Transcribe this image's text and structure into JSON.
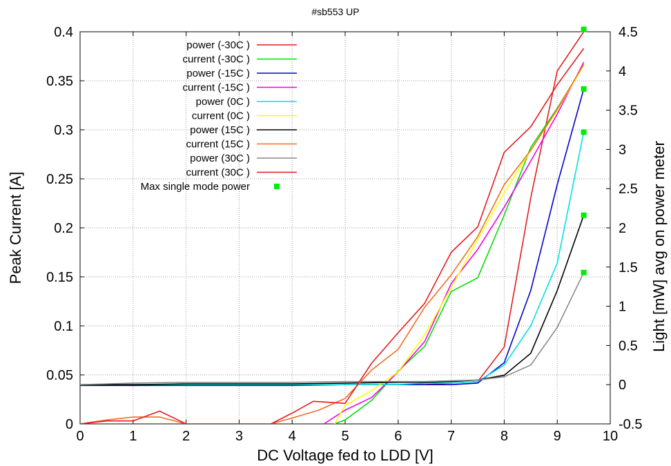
{
  "chart_data": {
    "type": "line",
    "title": "#sb553 UP",
    "xlabel": "DC Voltage fed to LDD [V]",
    "ylabel": "Peak Current [A]",
    "y2label": "Light [mW] avg on power meter",
    "xlim": [
      0,
      10
    ],
    "ylim": [
      0,
      0.4
    ],
    "y2lim": [
      -0.5,
      4.5
    ],
    "xticks": [
      "0",
      "1",
      "2",
      "3",
      "4",
      "5",
      "6",
      "7",
      "8",
      "9",
      "10"
    ],
    "yticks": [
      "0",
      "0.05",
      "0.1",
      "0.15",
      "0.2",
      "0.25",
      "0.3",
      "0.35",
      "0.4"
    ],
    "y2ticks": [
      "-0.5",
      "0",
      "0.5",
      "1",
      "1.5",
      "2",
      "2.5",
      "3",
      "3.5",
      "4",
      "4.5"
    ],
    "grid": true,
    "legend_position": "top-left",
    "series": [
      {
        "name": "power (-30C )",
        "axis": "y2",
        "color": "#e41a1c",
        "x": [
          0,
          0.5,
          1,
          1.5,
          2,
          2.5,
          3,
          3.5,
          4,
          4.5,
          5,
          5.5,
          6,
          6.5,
          7,
          7.5,
          8,
          8.5,
          9,
          9.5
        ],
        "y": [
          -0.005,
          -0.005,
          -0.01,
          -0.005,
          -0.005,
          -0.005,
          -0.005,
          -0.005,
          -0.005,
          0,
          0,
          0,
          0,
          0,
          0.02,
          0.04,
          0.48,
          2.38,
          4.0,
          4.5
        ]
      },
      {
        "name": "current (-30C )",
        "axis": "y",
        "color": "#00dd00",
        "x": [
          4.8,
          5,
          5.5,
          6,
          6.5,
          7,
          7.5,
          8,
          8.5,
          9,
          9.5
        ],
        "y": [
          0,
          0.004,
          0.024,
          0.054,
          0.079,
          0.135,
          0.149,
          0.213,
          0.282,
          0.322,
          0.366
        ]
      },
      {
        "name": "power (-15C )",
        "axis": "y2",
        "color": "#0000cc",
        "x": [
          0,
          1,
          2,
          3,
          4,
          5,
          6,
          6.5,
          7,
          7.5,
          8,
          8.5,
          9,
          9.5
        ],
        "y": [
          -0.01,
          -0.01,
          -0.01,
          -0.01,
          -0.01,
          0,
          0,
          0,
          0,
          0.02,
          0.28,
          1.2,
          2.55,
          3.77
        ]
      },
      {
        "name": "current (-15C )",
        "axis": "y",
        "color": "#ee00ee",
        "x": [
          4.6,
          5,
          5.5,
          6,
          6.5,
          7,
          7.5,
          8,
          8.5,
          9,
          9.5
        ],
        "y": [
          0,
          0.014,
          0.027,
          0.053,
          0.084,
          0.143,
          0.178,
          0.221,
          0.268,
          0.316,
          0.369
        ]
      },
      {
        "name": "power (0C )",
        "axis": "y2",
        "color": "#00e0e0",
        "x": [
          0,
          1,
          2,
          3,
          4,
          5,
          6,
          6.5,
          7,
          7.5,
          8,
          8.5,
          9,
          9.5
        ],
        "y": [
          0,
          0,
          0,
          0,
          0,
          0,
          0,
          0.02,
          0.02,
          0.04,
          0.25,
          0.75,
          1.55,
          3.22
        ]
      },
      {
        "name": "current (0C )",
        "axis": "y",
        "color": "#ffff00",
        "x": [
          4.8,
          5,
          5.5,
          6,
          6.5,
          7,
          7.5,
          8,
          8.5,
          9,
          9.5
        ],
        "y": [
          0,
          0.019,
          0.034,
          0.053,
          0.091,
          0.139,
          0.188,
          0.236,
          0.279,
          0.32,
          0.366
        ]
      },
      {
        "name": "power (15C )",
        "axis": "y2",
        "color": "#000000",
        "x": [
          0,
          1,
          2,
          3,
          4,
          5,
          6,
          6.5,
          7,
          7.5,
          8,
          8.5,
          9,
          9.5
        ],
        "y": [
          0,
          0,
          0.01,
          0.01,
          0.01,
          0.02,
          0.03,
          0.03,
          0.04,
          0.06,
          0.12,
          0.4,
          1.2,
          2.16
        ]
      },
      {
        "name": "current (15C )",
        "axis": "y",
        "color": "#f26b21",
        "x": [
          0,
          0.5,
          1,
          1.5,
          2,
          3.6,
          4,
          4.5,
          5,
          5.5,
          6,
          6.5,
          7,
          7.5,
          8,
          8.5,
          9,
          9.5
        ],
        "y": [
          0,
          0.004,
          0.007,
          0.007,
          0,
          0,
          0.006,
          0.014,
          0.026,
          0.055,
          0.076,
          0.119,
          0.152,
          0.191,
          0.244,
          0.279,
          0.321,
          0.367
        ]
      },
      {
        "name": "power (30C )",
        "axis": "y2",
        "color": "#888888",
        "x": [
          0,
          1,
          2,
          3,
          4,
          5,
          6,
          6.5,
          7,
          7.5,
          8,
          8.5,
          9,
          9.5
        ],
        "y": [
          0,
          0.02,
          0.03,
          0.03,
          0.03,
          0.04,
          0.04,
          0.04,
          0.05,
          0.06,
          0.1,
          0.25,
          0.73,
          1.43
        ]
      },
      {
        "name": "current (30C )",
        "axis": "y",
        "color": "#e41a1c",
        "x": [
          0,
          0.5,
          1,
          1.5,
          2,
          3.6,
          4,
          4.4,
          5,
          5.5,
          6,
          6.5,
          7,
          7.5,
          8,
          8.5,
          9,
          9.5
        ],
        "y": [
          0,
          0.003,
          0.003,
          0.013,
          0,
          0,
          0.011,
          0.023,
          0.021,
          0.062,
          0.093,
          0.123,
          0.175,
          0.201,
          0.277,
          0.303,
          0.346,
          0.383
        ]
      }
    ],
    "points": {
      "name": "Max single mode power",
      "axis": "y2",
      "color": "#00ee00",
      "x": [
        9.5,
        9.5,
        9.5,
        9.5,
        9.5
      ],
      "y": [
        4.53,
        3.77,
        3.22,
        2.16,
        1.43
      ]
    }
  }
}
